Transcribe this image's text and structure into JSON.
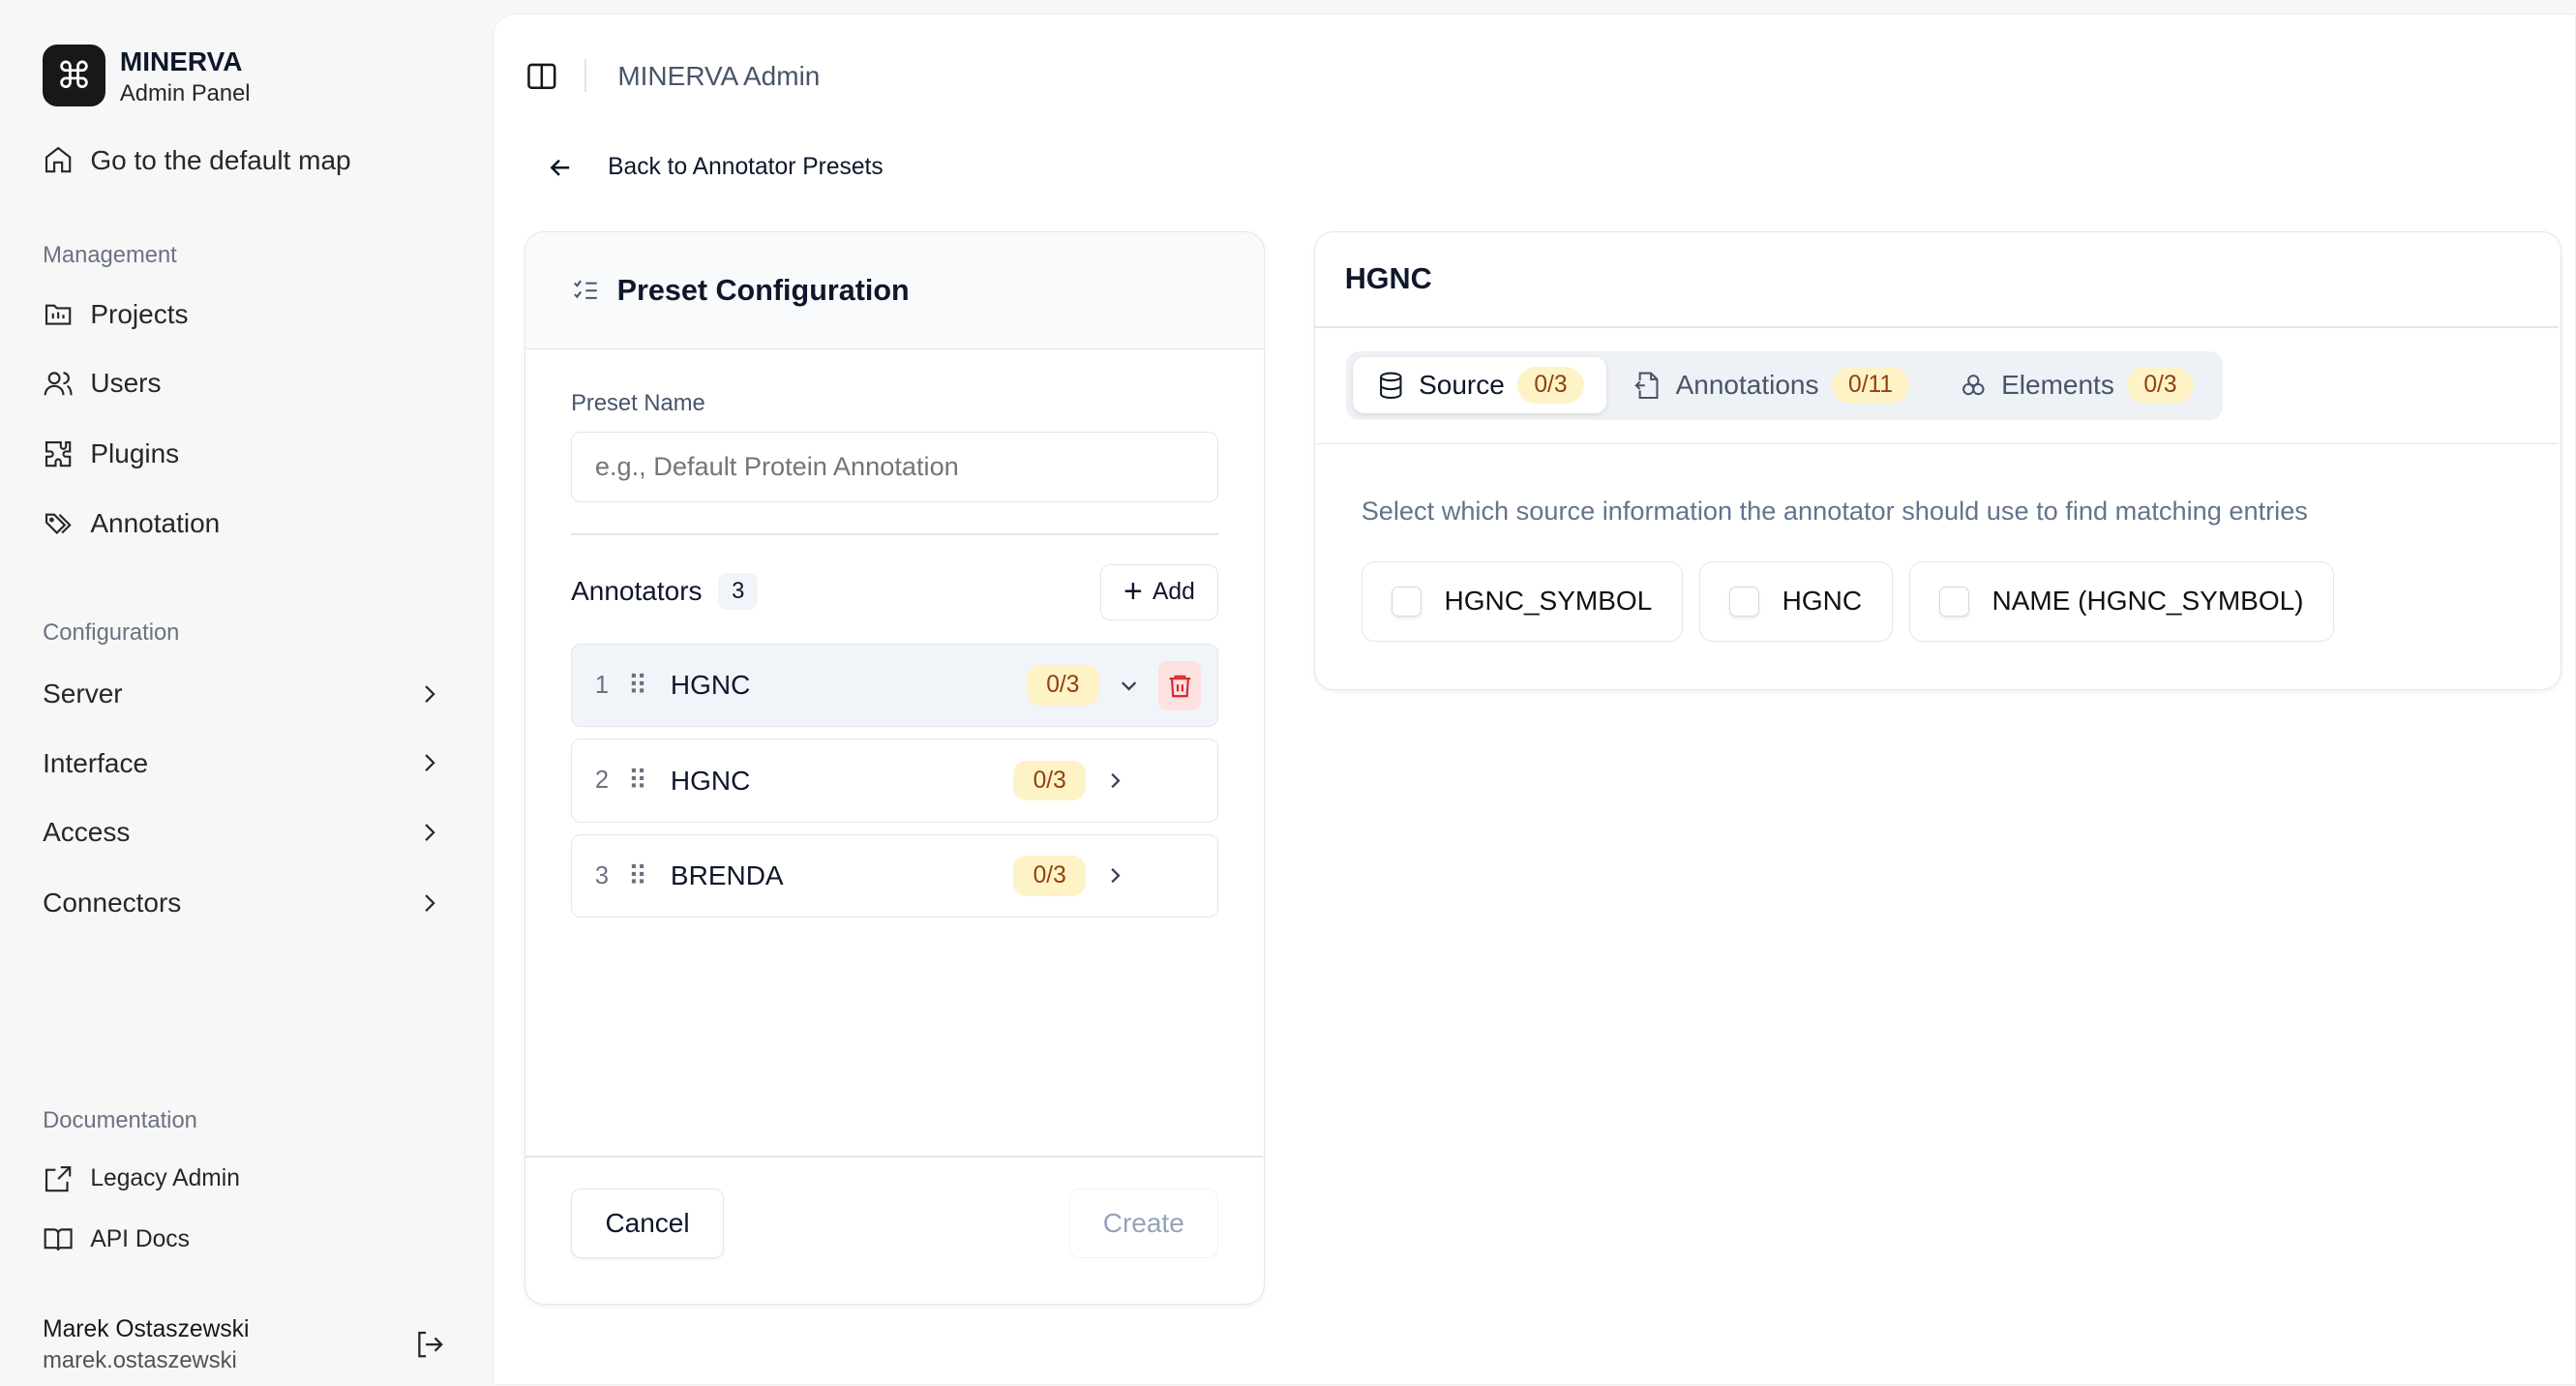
{
  "sidebar": {
    "brand": {
      "title": "MINERVA",
      "subtitle": "Admin Panel",
      "icon": "command-icon"
    },
    "default_map": "Go to the default map",
    "management_label": "Management",
    "management": [
      {
        "label": "Projects",
        "icon": "folder-chart-icon"
      },
      {
        "label": "Users",
        "icon": "users-icon"
      },
      {
        "label": "Plugins",
        "icon": "puzzle-icon"
      },
      {
        "label": "Annotation",
        "icon": "tags-icon"
      }
    ],
    "configuration_label": "Configuration",
    "configuration": [
      {
        "label": "Server"
      },
      {
        "label": "Interface"
      },
      {
        "label": "Access"
      },
      {
        "label": "Connectors"
      }
    ],
    "documentation_label": "Documentation",
    "documentation": [
      {
        "label": "Legacy Admin",
        "icon": "external-link-icon"
      },
      {
        "label": "API Docs",
        "icon": "book-open-icon"
      }
    ],
    "user": {
      "name": "Marek Ostaszewski",
      "login": "marek.ostaszewski"
    }
  },
  "header": {
    "title": "MINERVA Admin"
  },
  "back_link": "Back to Annotator Presets",
  "preset": {
    "title": "Preset Configuration",
    "name_label": "Preset Name",
    "name_value": "",
    "name_placeholder": "e.g., Default Protein Annotation",
    "annotators_label": "Annotators",
    "annotators_count": "3",
    "add_label": "Add",
    "annotators": [
      {
        "index": "1",
        "name": "HGNC",
        "badge": "0/3",
        "expanded": true
      },
      {
        "index": "2",
        "name": "HGNC",
        "badge": "0/3"
      },
      {
        "index": "3",
        "name": "BRENDA",
        "badge": "0/3"
      }
    ],
    "cancel": "Cancel",
    "create": "Create"
  },
  "detail": {
    "title": "HGNC",
    "tabs": [
      {
        "label": "Source",
        "badge": "0/3",
        "active": true
      },
      {
        "label": "Annotations",
        "badge": "0/11"
      },
      {
        "label": "Elements",
        "badge": "0/3"
      }
    ],
    "description": "Select which source information the annotator should use to find matching entries",
    "options": [
      {
        "label": "HGNC_SYMBOL",
        "checked": false
      },
      {
        "label": "HGNC",
        "checked": false
      },
      {
        "label": "NAME (HGNC_SYMBOL)",
        "checked": false
      }
    ]
  },
  "colors": {
    "badge_bg": "#fdf3c7",
    "badge_text": "#92400e",
    "delete": "#dc2626"
  }
}
